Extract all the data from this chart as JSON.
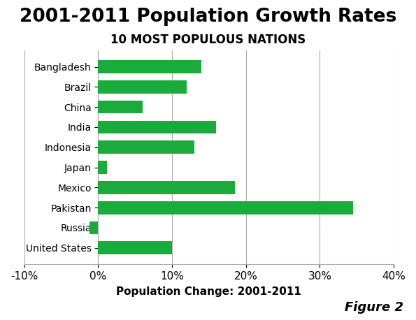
{
  "title": "2001-2011 Population Growth Rates",
  "subtitle": "10 MOST POPULOUS NATIONS",
  "xlabel": "Population Change: 2001-2011",
  "figure_label": "Figure 2",
  "categories": [
    "Bangladesh",
    "Brazil",
    "China",
    "India",
    "Indonesia",
    "Japan",
    "Mexico",
    "Pakistan",
    "Russia",
    "United States"
  ],
  "values": [
    14.0,
    12.0,
    6.0,
    16.0,
    13.0,
    1.2,
    18.5,
    34.5,
    -1.2,
    10.0
  ],
  "bar_color": "#1aab3c",
  "xlim": [
    -10,
    40
  ],
  "xticks": [
    -10,
    0,
    10,
    20,
    30,
    40
  ],
  "xtick_labels": [
    "-10%",
    "0%",
    "10%",
    "20%",
    "30%",
    "40%"
  ],
  "background_color": "#ffffff",
  "title_fontsize": 19,
  "subtitle_fontsize": 12,
  "xlabel_fontsize": 11,
  "ytick_fontsize": 10,
  "xtick_fontsize": 11,
  "figure_label_fontsize": 13
}
